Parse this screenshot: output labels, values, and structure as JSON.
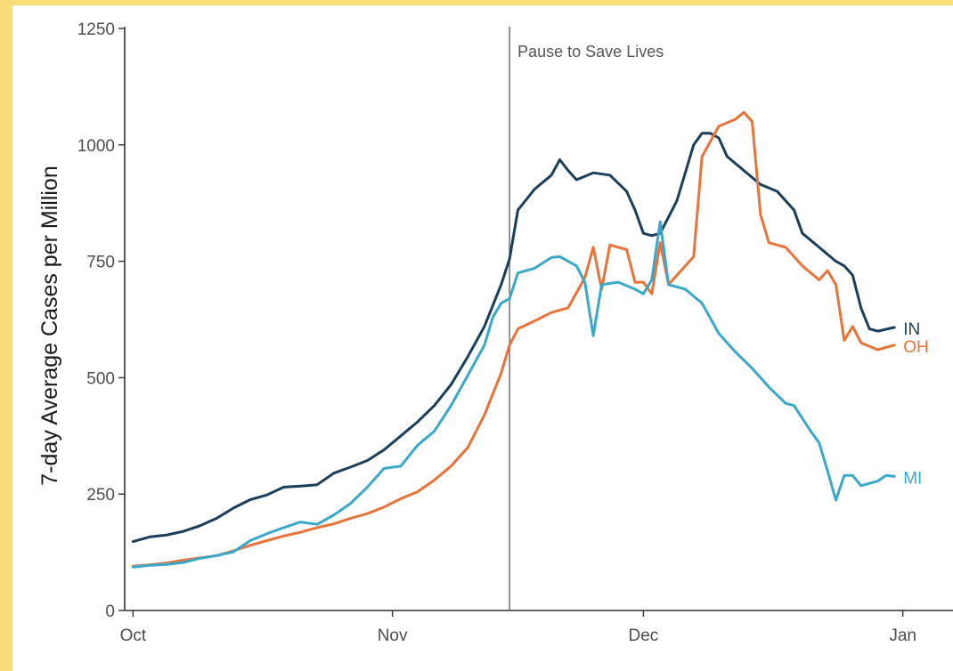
{
  "chart_data": {
    "type": "line",
    "title": "",
    "xlabel": "",
    "ylabel": "7-day Average Cases per Million",
    "ylim": [
      0,
      1250
    ],
    "yticks": [
      0,
      250,
      500,
      750,
      1000,
      1250
    ],
    "xlim": [
      "2020-09-30",
      "2021-01-07"
    ],
    "xticks": [
      {
        "date": "2020-10-01",
        "label": "Oct"
      },
      {
        "date": "2020-11-01",
        "label": "Nov"
      },
      {
        "date": "2020-12-01",
        "label": "Dec"
      },
      {
        "date": "2021-01-01",
        "label": "Jan"
      }
    ],
    "grid": false,
    "legend": "direct labels at line ends",
    "annotation": {
      "date": "2020-11-15",
      "label": "Pause to Save Lives"
    },
    "series": [
      {
        "name": "IN",
        "color": "#1b3f5a",
        "points": [
          [
            "2020-10-01",
            148
          ],
          [
            "2020-10-03",
            158
          ],
          [
            "2020-10-05",
            162
          ],
          [
            "2020-10-07",
            170
          ],
          [
            "2020-10-09",
            182
          ],
          [
            "2020-10-11",
            198
          ],
          [
            "2020-10-13",
            220
          ],
          [
            "2020-10-15",
            238
          ],
          [
            "2020-10-17",
            248
          ],
          [
            "2020-10-19",
            265
          ],
          [
            "2020-10-21",
            267
          ],
          [
            "2020-10-23",
            270
          ],
          [
            "2020-10-25",
            295
          ],
          [
            "2020-10-27",
            308
          ],
          [
            "2020-10-29",
            322
          ],
          [
            "2020-10-31",
            345
          ],
          [
            "2020-11-02",
            375
          ],
          [
            "2020-11-04",
            405
          ],
          [
            "2020-11-06",
            440
          ],
          [
            "2020-11-08",
            485
          ],
          [
            "2020-11-10",
            545
          ],
          [
            "2020-11-12",
            610
          ],
          [
            "2020-11-14",
            700
          ],
          [
            "2020-11-15",
            755
          ],
          [
            "2020-11-16",
            860
          ],
          [
            "2020-11-18",
            905
          ],
          [
            "2020-11-20",
            935
          ],
          [
            "2020-11-21",
            968
          ],
          [
            "2020-11-22",
            945
          ],
          [
            "2020-11-23",
            925
          ],
          [
            "2020-11-25",
            940
          ],
          [
            "2020-11-27",
            935
          ],
          [
            "2020-11-29",
            900
          ],
          [
            "2020-11-30",
            860
          ],
          [
            "2020-12-01",
            810
          ],
          [
            "2020-12-02",
            805
          ],
          [
            "2020-12-03",
            810
          ],
          [
            "2020-12-05",
            880
          ],
          [
            "2020-12-07",
            1000
          ],
          [
            "2020-12-08",
            1025
          ],
          [
            "2020-12-09",
            1025
          ],
          [
            "2020-12-10",
            1015
          ],
          [
            "2020-12-11",
            975
          ],
          [
            "2020-12-13",
            945
          ],
          [
            "2020-12-15",
            915
          ],
          [
            "2020-12-17",
            900
          ],
          [
            "2020-12-19",
            860
          ],
          [
            "2020-12-20",
            810
          ],
          [
            "2020-12-22",
            780
          ],
          [
            "2020-12-24",
            750
          ],
          [
            "2020-12-25",
            740
          ],
          [
            "2020-12-26",
            720
          ],
          [
            "2020-12-27",
            650
          ],
          [
            "2020-12-28",
            605
          ],
          [
            "2020-12-29",
            600
          ],
          [
            "2020-12-31",
            608
          ]
        ]
      },
      {
        "name": "OH",
        "color": "#e8743b",
        "points": [
          [
            "2020-10-01",
            95
          ],
          [
            "2020-10-03",
            98
          ],
          [
            "2020-10-05",
            102
          ],
          [
            "2020-10-07",
            108
          ],
          [
            "2020-10-09",
            113
          ],
          [
            "2020-10-11",
            118
          ],
          [
            "2020-10-13",
            128
          ],
          [
            "2020-10-15",
            140
          ],
          [
            "2020-10-17",
            150
          ],
          [
            "2020-10-19",
            160
          ],
          [
            "2020-10-21",
            168
          ],
          [
            "2020-10-23",
            178
          ],
          [
            "2020-10-25",
            186
          ],
          [
            "2020-10-27",
            198
          ],
          [
            "2020-10-29",
            208
          ],
          [
            "2020-10-31",
            222
          ],
          [
            "2020-11-02",
            240
          ],
          [
            "2020-11-04",
            255
          ],
          [
            "2020-11-06",
            280
          ],
          [
            "2020-11-08",
            310
          ],
          [
            "2020-11-10",
            350
          ],
          [
            "2020-11-12",
            420
          ],
          [
            "2020-11-14",
            510
          ],
          [
            "2020-11-15",
            570
          ],
          [
            "2020-11-16",
            605
          ],
          [
            "2020-11-18",
            622
          ],
          [
            "2020-11-20",
            640
          ],
          [
            "2020-11-22",
            650
          ],
          [
            "2020-11-24",
            715
          ],
          [
            "2020-11-25",
            780
          ],
          [
            "2020-11-26",
            690
          ],
          [
            "2020-11-27",
            785
          ],
          [
            "2020-11-29",
            775
          ],
          [
            "2020-11-30",
            705
          ],
          [
            "2020-12-01",
            705
          ],
          [
            "2020-12-02",
            680
          ],
          [
            "2020-12-03",
            790
          ],
          [
            "2020-12-04",
            700
          ],
          [
            "2020-12-06",
            740
          ],
          [
            "2020-12-07",
            760
          ],
          [
            "2020-12-08",
            975
          ],
          [
            "2020-12-10",
            1040
          ],
          [
            "2020-12-12",
            1055
          ],
          [
            "2020-12-13",
            1070
          ],
          [
            "2020-12-14",
            1050
          ],
          [
            "2020-12-15",
            850
          ],
          [
            "2020-12-16",
            790
          ],
          [
            "2020-12-18",
            780
          ],
          [
            "2020-12-20",
            740
          ],
          [
            "2020-12-22",
            710
          ],
          [
            "2020-12-23",
            730
          ],
          [
            "2020-12-24",
            700
          ],
          [
            "2020-12-25",
            580
          ],
          [
            "2020-12-26",
            610
          ],
          [
            "2020-12-27",
            575
          ],
          [
            "2020-12-29",
            560
          ],
          [
            "2020-12-31",
            570
          ]
        ]
      },
      {
        "name": "MI",
        "color": "#3aa8c9",
        "points": [
          [
            "2020-10-01",
            93
          ],
          [
            "2020-10-03",
            97
          ],
          [
            "2020-10-05",
            99
          ],
          [
            "2020-10-07",
            103
          ],
          [
            "2020-10-09",
            112
          ],
          [
            "2020-10-11",
            118
          ],
          [
            "2020-10-13",
            126
          ],
          [
            "2020-10-15",
            150
          ],
          [
            "2020-10-17",
            165
          ],
          [
            "2020-10-19",
            178
          ],
          [
            "2020-10-21",
            190
          ],
          [
            "2020-10-23",
            185
          ],
          [
            "2020-10-25",
            205
          ],
          [
            "2020-10-27",
            230
          ],
          [
            "2020-10-29",
            265
          ],
          [
            "2020-10-31",
            305
          ],
          [
            "2020-11-02",
            310
          ],
          [
            "2020-11-04",
            355
          ],
          [
            "2020-11-06",
            385
          ],
          [
            "2020-11-08",
            440
          ],
          [
            "2020-11-10",
            505
          ],
          [
            "2020-11-12",
            570
          ],
          [
            "2020-11-13",
            630
          ],
          [
            "2020-11-14",
            660
          ],
          [
            "2020-11-15",
            670
          ],
          [
            "2020-11-16",
            725
          ],
          [
            "2020-11-18",
            735
          ],
          [
            "2020-11-20",
            758
          ],
          [
            "2020-11-21",
            760
          ],
          [
            "2020-11-23",
            740
          ],
          [
            "2020-11-24",
            705
          ],
          [
            "2020-11-25",
            590
          ],
          [
            "2020-11-26",
            700
          ],
          [
            "2020-11-28",
            705
          ],
          [
            "2020-11-30",
            690
          ],
          [
            "2020-12-01",
            680
          ],
          [
            "2020-12-02",
            710
          ],
          [
            "2020-12-03",
            835
          ],
          [
            "2020-12-04",
            700
          ],
          [
            "2020-12-06",
            690
          ],
          [
            "2020-12-08",
            660
          ],
          [
            "2020-12-10",
            595
          ],
          [
            "2020-12-12",
            555
          ],
          [
            "2020-12-14",
            520
          ],
          [
            "2020-12-16",
            480
          ],
          [
            "2020-12-18",
            445
          ],
          [
            "2020-12-19",
            440
          ],
          [
            "2020-12-21",
            385
          ],
          [
            "2020-12-22",
            360
          ],
          [
            "2020-12-23",
            300
          ],
          [
            "2020-12-24",
            237
          ],
          [
            "2020-12-25",
            290
          ],
          [
            "2020-12-26",
            290
          ],
          [
            "2020-12-27",
            268
          ],
          [
            "2020-12-29",
            278
          ],
          [
            "2020-12-30",
            290
          ],
          [
            "2020-12-31",
            288
          ]
        ]
      }
    ]
  }
}
